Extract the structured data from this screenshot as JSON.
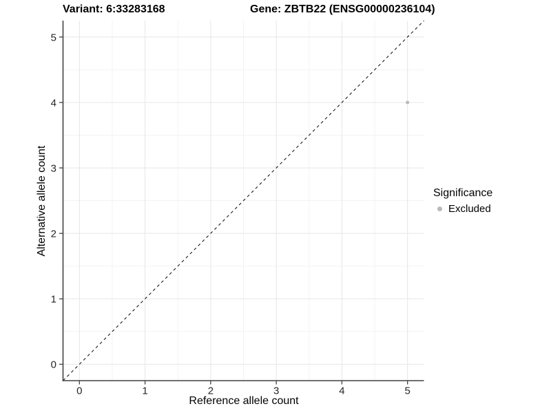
{
  "titles": {
    "variant_title": "Variant: 6:33283168",
    "gene_title": "Gene: ZBTB22 (ENSG00000236104)"
  },
  "chart_data": {
    "type": "scatter",
    "xlabel": "Reference allele count",
    "ylabel": "Alternative allele count",
    "xlim": [
      -0.25,
      5.25
    ],
    "ylim": [
      -0.25,
      5.25
    ],
    "xticks": [
      0,
      1,
      2,
      3,
      4,
      5
    ],
    "yticks": [
      0,
      1,
      2,
      3,
      4,
      5
    ],
    "minor_xticks": [
      0.5,
      1.5,
      2.5,
      3.5,
      4.5
    ],
    "minor_yticks": [
      0.5,
      1.5,
      2.5,
      3.5,
      4.5
    ],
    "grid": true,
    "points": [
      {
        "x": 5,
        "y": 4,
        "significance": "Excluded"
      }
    ],
    "identity_line": {
      "style": "dashed",
      "equation": "y = x",
      "from": [
        -0.25,
        -0.25
      ],
      "to": [
        5.25,
        5.25
      ]
    },
    "legend": {
      "title": "Significance",
      "position": "right",
      "entries": [
        {
          "label": "Excluded",
          "color": "#b9b9b9"
        }
      ]
    },
    "colors": {
      "point": "#b9b9b9",
      "grid_major": "#e6e6e6",
      "grid_minor": "#f3f3f3",
      "axis_line": "#404040",
      "tick_text": "#262626",
      "identity_line": "#1a1a1a",
      "background": "#ffffff"
    }
  }
}
